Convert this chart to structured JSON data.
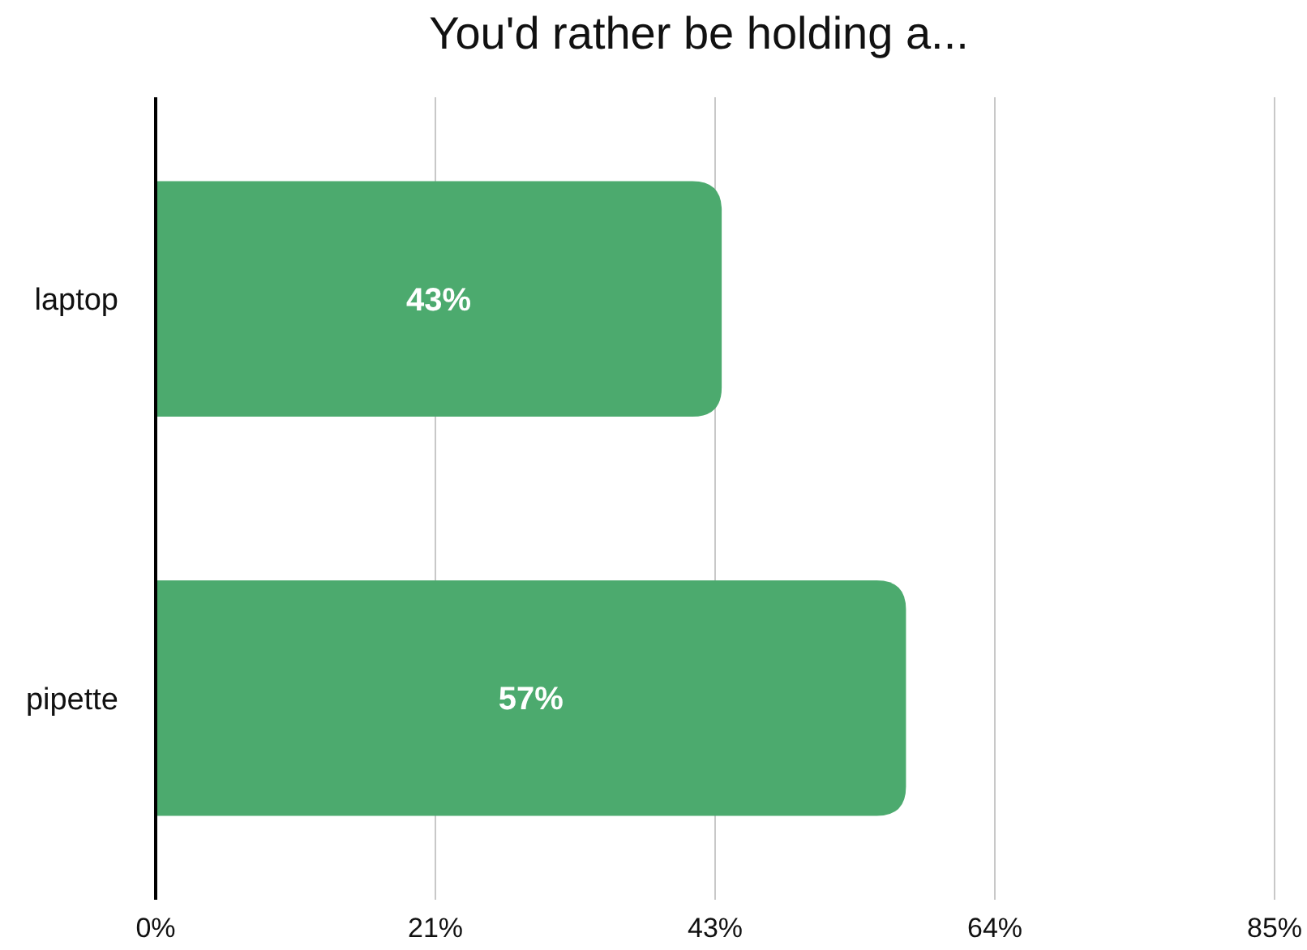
{
  "chart_data": {
    "type": "bar",
    "orientation": "horizontal",
    "title": "You'd rather be holding a...",
    "categories": [
      "laptop",
      "pipette"
    ],
    "values": [
      43,
      57
    ],
    "color": "#4caa6e",
    "value_labels": [
      "43%",
      "57%"
    ],
    "xlim": [
      0,
      85
    ],
    "xticks": [
      {
        "value": 0,
        "label": "0%"
      },
      {
        "value": 21.25,
        "label": "21%"
      },
      {
        "value": 42.5,
        "label": "43%"
      },
      {
        "value": 63.75,
        "label": "64%"
      },
      {
        "value": 85,
        "label": "85%"
      }
    ],
    "grid": "x"
  }
}
